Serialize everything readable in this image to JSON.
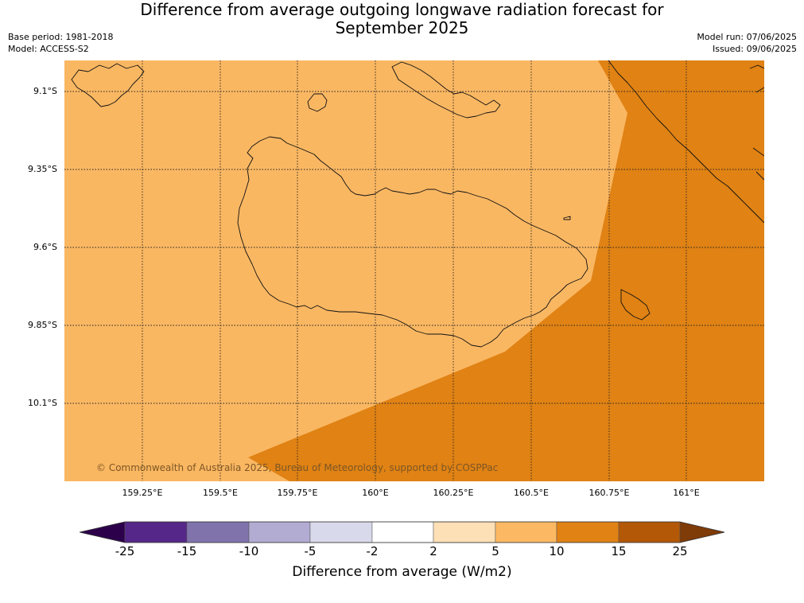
{
  "title": {
    "line1": "Difference from average outgoing longwave radiation forecast for",
    "line2": "September 2025"
  },
  "meta": {
    "base_period": "Base period: 1981-2018",
    "model": "Model: ACCESS-S2",
    "model_run": "Model run: 07/06/2025",
    "issued": "Issued: 09/06/2025"
  },
  "map": {
    "lat_ticks": [
      "9.1°S",
      "9.35°S",
      "9.6°S",
      "9.85°S",
      "10.1°S"
    ],
    "lon_ticks": [
      "159.25°E",
      "159.5°E",
      "159.75°E",
      "160°E",
      "160.25°E",
      "160.5°E",
      "160.75°E",
      "161°E"
    ],
    "copyright": "© Commonwealth of Australia 2025, Bureau of Meteorology, supported by COSPPac",
    "zone_colors": {
      "5 to 10": "#fab762",
      "10 to 15": "#e08214"
    }
  },
  "colorbar": {
    "title": "Difference from average (W/m2)",
    "tick_labels": [
      "-25",
      "-15",
      "-10",
      "-5",
      "-2",
      "2",
      "5",
      "10",
      "15",
      "25"
    ],
    "colors": [
      "#2d004b",
      "#542788",
      "#8073ac",
      "#b2abd2",
      "#d8daeb",
      "#ffffff",
      "#fee0b6",
      "#fdb863",
      "#e08214",
      "#b35806",
      "#7f3b08"
    ]
  }
}
